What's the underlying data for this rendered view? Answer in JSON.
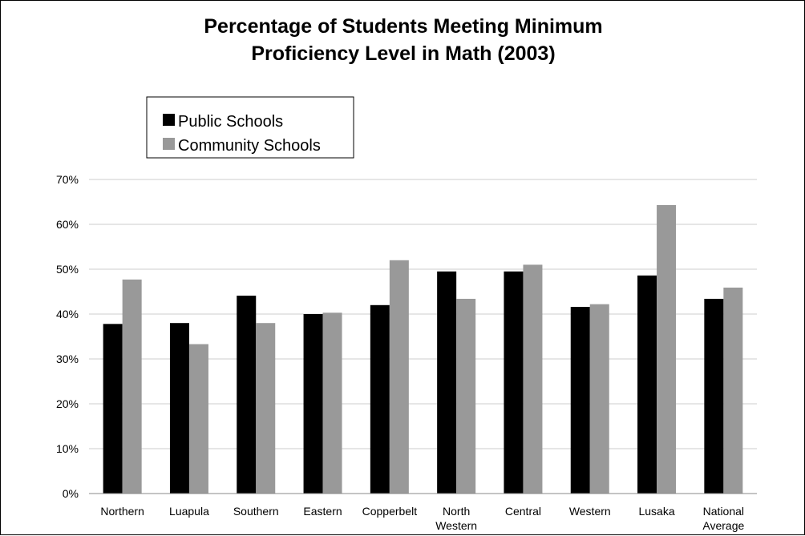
{
  "colors": {
    "public": "#000000",
    "community": "#999999",
    "grid": "#cccccc",
    "axis": "#888888"
  },
  "chart_data": {
    "type": "bar",
    "title": "Percentage of Students Meeting Minimum Proficiency Level in Math (2003)",
    "title_lines": [
      "Percentage of Students Meeting Minimum",
      "Proficiency Level in Math (2003)"
    ],
    "categories": [
      "Northern",
      "Luapula",
      "Southern",
      "Eastern",
      "Copperbelt",
      "North Western",
      "Central",
      "Western",
      "Lusaka",
      "National Average"
    ],
    "category_lines": [
      [
        "Northern"
      ],
      [
        "Luapula"
      ],
      [
        "Southern"
      ],
      [
        "Eastern"
      ],
      [
        "Copperbelt"
      ],
      [
        "North",
        "Western"
      ],
      [
        "Central"
      ],
      [
        "Western"
      ],
      [
        "Lusaka"
      ],
      [
        "National",
        "Average"
      ]
    ],
    "series": [
      {
        "name": "Public Schools",
        "color": "#000000",
        "values": [
          37.8,
          38.0,
          44.1,
          40.0,
          42.0,
          49.5,
          49.5,
          41.6,
          48.6,
          43.4
        ]
      },
      {
        "name": "Community Schools",
        "color": "#999999",
        "values": [
          47.7,
          33.3,
          38.0,
          40.3,
          52.0,
          43.4,
          51.0,
          42.2,
          64.3,
          45.9
        ]
      }
    ],
    "ylim": [
      0,
      70
    ],
    "yticks": [
      0,
      10,
      20,
      30,
      40,
      50,
      60,
      70
    ],
    "ytick_labels": [
      "0%",
      "10%",
      "20%",
      "30%",
      "40%",
      "50%",
      "60%",
      "70%"
    ],
    "grid": true,
    "legend_position": "top-left",
    "xlabel": "",
    "ylabel": ""
  }
}
